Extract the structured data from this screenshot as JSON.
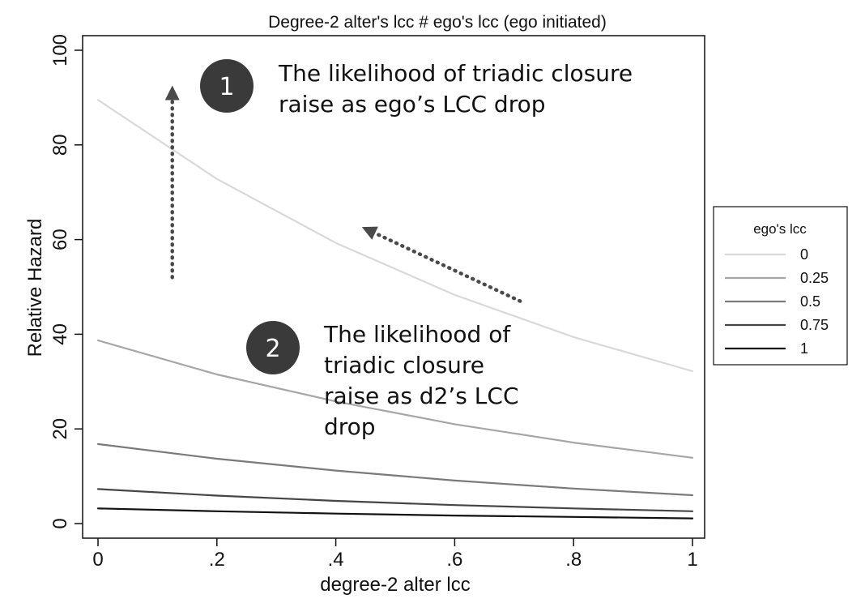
{
  "chart_data": {
    "type": "line",
    "title": "Degree-2 alter's lcc  # ego's lcc (ego initiated)",
    "xlabel": "degree-2 alter lcc",
    "ylabel": "Relative Hazard",
    "xlim": [
      0,
      1
    ],
    "ylim": [
      0,
      100
    ],
    "x": [
      0,
      0.2,
      0.4,
      0.6,
      0.8,
      1
    ],
    "xticks": [
      {
        "value": 0,
        "label": "0"
      },
      {
        "value": 0.2,
        "label": ".2"
      },
      {
        "value": 0.4,
        "label": ".4"
      },
      {
        "value": 0.6,
        "label": ".6"
      },
      {
        "value": 0.8,
        "label": ".8"
      },
      {
        "value": 1,
        "label": "1"
      }
    ],
    "yticks": [
      {
        "value": 0,
        "label": "0"
      },
      {
        "value": 20,
        "label": "20"
      },
      {
        "value": 40,
        "label": "40"
      },
      {
        "value": 60,
        "label": "60"
      },
      {
        "value": 80,
        "label": "80"
      },
      {
        "value": 100,
        "label": "100"
      }
    ],
    "grid": false,
    "legend": {
      "title": "ego's lcc",
      "placement": "right"
    },
    "series": [
      {
        "name": "0",
        "color": "#d9d9d9",
        "values": [
          89.5,
          72.8,
          59.3,
          48.3,
          39.4,
          32.2
        ]
      },
      {
        "name": "0.25",
        "color": "#a6a6a6",
        "values": [
          38.7,
          31.5,
          25.8,
          21.0,
          17.1,
          13.9
        ]
      },
      {
        "name": "0.5",
        "color": "#7a7a7a",
        "values": [
          16.8,
          13.7,
          11.2,
          9.1,
          7.4,
          6.0
        ]
      },
      {
        "name": "0.75",
        "color": "#454545",
        "values": [
          7.3,
          5.9,
          4.8,
          3.9,
          3.2,
          2.6
        ]
      },
      {
        "name": "1",
        "color": "#111111",
        "values": [
          3.2,
          2.6,
          2.1,
          1.7,
          1.4,
          1.1
        ]
      }
    ],
    "annotations": [
      {
        "badge": "1",
        "lines": [
          "The likelihood of triadic closure",
          "raise as ego’s LCC drop"
        ],
        "arrow": {
          "from": [
            0.125,
            52
          ],
          "to": [
            0.125,
            91
          ]
        }
      },
      {
        "badge": "2",
        "lines": [
          "The likelihood of",
          "triadic closure",
          "raise as d2’s LCC",
          "drop"
        ],
        "arrow": {
          "from": [
            0.71,
            47
          ],
          "to": [
            0.455,
            62
          ]
        }
      }
    ]
  }
}
